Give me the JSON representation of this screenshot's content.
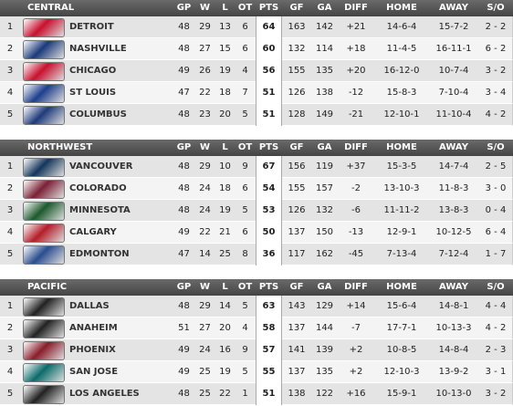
{
  "divisions": [
    {
      "name": "CENTRAL",
      "columns": [
        "GP",
        "W",
        "L",
        "OT",
        "PTS",
        "GF",
        "GA",
        "DIFF",
        "HOME",
        "AWAY",
        "S/O"
      ],
      "rows": [
        [
          1,
          "DETROIT",
          48,
          29,
          13,
          6,
          64,
          163,
          142,
          "+21",
          "14-6-4",
          "15-7-2",
          "2 - 2"
        ],
        [
          2,
          "NASHVILLE",
          48,
          27,
          15,
          6,
          60,
          132,
          114,
          "+18",
          "11-4-5",
          "16-11-1",
          "6 - 2"
        ],
        [
          3,
          "CHICAGO",
          49,
          26,
          19,
          4,
          56,
          155,
          135,
          "+20",
          "16-12-0",
          "10-7-4",
          "3 - 2"
        ],
        [
          4,
          "ST LOUIS",
          47,
          22,
          18,
          7,
          51,
          126,
          138,
          "-12",
          "15-8-3",
          "7-10-4",
          "3 - 4"
        ],
        [
          5,
          "COLUMBUS",
          48,
          23,
          20,
          5,
          51,
          128,
          149,
          "-21",
          "12-10-1",
          "11-10-4",
          "4 - 2"
        ]
      ]
    },
    {
      "name": "NORTHWEST",
      "columns": [
        "GP",
        "W",
        "L",
        "OT",
        "PTS",
        "GF",
        "GA",
        "DIFF",
        "HOME",
        "AWAY",
        "S/O"
      ],
      "rows": [
        [
          1,
          "VANCOUVER",
          48,
          29,
          10,
          9,
          67,
          156,
          119,
          "+37",
          "15-3-5",
          "14-7-4",
          "2 - 5"
        ],
        [
          2,
          "COLORADO",
          48,
          24,
          18,
          6,
          54,
          155,
          157,
          "-2",
          "13-10-3",
          "11-8-3",
          "3 - 0"
        ],
        [
          3,
          "MINNESOTA",
          48,
          24,
          19,
          5,
          53,
          126,
          132,
          "-6",
          "11-11-2",
          "13-8-3",
          "0 - 4"
        ],
        [
          4,
          "CALGARY",
          49,
          22,
          21,
          6,
          50,
          137,
          150,
          "-13",
          "12-9-1",
          "10-12-5",
          "6 - 4"
        ],
        [
          5,
          "EDMONTON",
          47,
          14,
          25,
          8,
          36,
          117,
          162,
          "-45",
          "7-13-4",
          "7-12-4",
          "1 - 7"
        ]
      ]
    },
    {
      "name": "PACIFIC",
      "columns": [
        "GP",
        "W",
        "L",
        "OT",
        "PTS",
        "GF",
        "GA",
        "DIFF",
        "HOME",
        "AWAY",
        "S/O"
      ],
      "rows": [
        [
          1,
          "DALLAS",
          48,
          29,
          14,
          5,
          63,
          143,
          129,
          "+14",
          "15-6-4",
          "14-8-1",
          "4 - 4"
        ],
        [
          2,
          "ANAHEIM",
          51,
          27,
          20,
          4,
          58,
          137,
          144,
          "-7",
          "17-7-1",
          "10-13-3",
          "4 - 2"
        ],
        [
          3,
          "PHOENIX",
          49,
          24,
          16,
          9,
          57,
          141,
          139,
          "+2",
          "10-8-5",
          "14-8-4",
          "2 - 3"
        ],
        [
          4,
          "SAN JOSE",
          49,
          25,
          19,
          5,
          55,
          137,
          135,
          "+2",
          "12-10-3",
          "13-9-2",
          "3 - 1"
        ],
        [
          5,
          "LOS ANGELES",
          48,
          25,
          22,
          1,
          51,
          138,
          122,
          "+16",
          "15-9-1",
          "10-13-0",
          "3 - 2"
        ]
      ]
    }
  ]
}
